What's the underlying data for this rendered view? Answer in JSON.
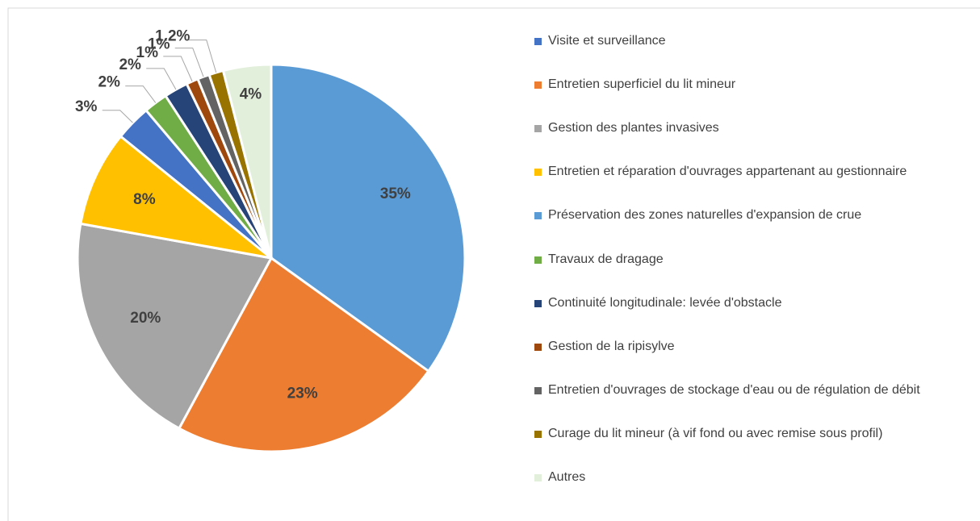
{
  "chart_data": {
    "type": "pie",
    "categories": [
      "Visite et surveillance",
      "Entretien superficiel du lit mineur",
      "Gestion des plantes invasives",
      "Entretien et réparation d'ouvrages appartenant au gestionnaire",
      "Préservation des zones naturelles d'expansion de crue",
      "Travaux de dragage",
      "Continuité longitudinale: levée d'obstacle",
      "Gestion de la ripisylve",
      "Entretien d'ouvrages de stockage d'eau ou de régulation de débit",
      "Curage du lit mineur (à vif fond ou avec remise sous profil)",
      "Autres"
    ],
    "values": [
      3,
      23,
      20,
      8,
      35,
      2,
      2,
      1,
      1,
      1.2,
      4
    ],
    "value_labels": [
      "3%",
      "23%",
      "20%",
      "8%",
      "35%",
      "2%",
      "2%",
      "1%",
      "1%",
      "1.2%",
      "4%"
    ],
    "colors": [
      "#4472c4",
      "#ed7d31",
      "#a5a5a5",
      "#ffc000",
      "#5b9bd5",
      "#70ad47",
      "#264478",
      "#9e480e",
      "#636363",
      "#997300",
      "#e2efda"
    ],
    "legend": "right"
  }
}
